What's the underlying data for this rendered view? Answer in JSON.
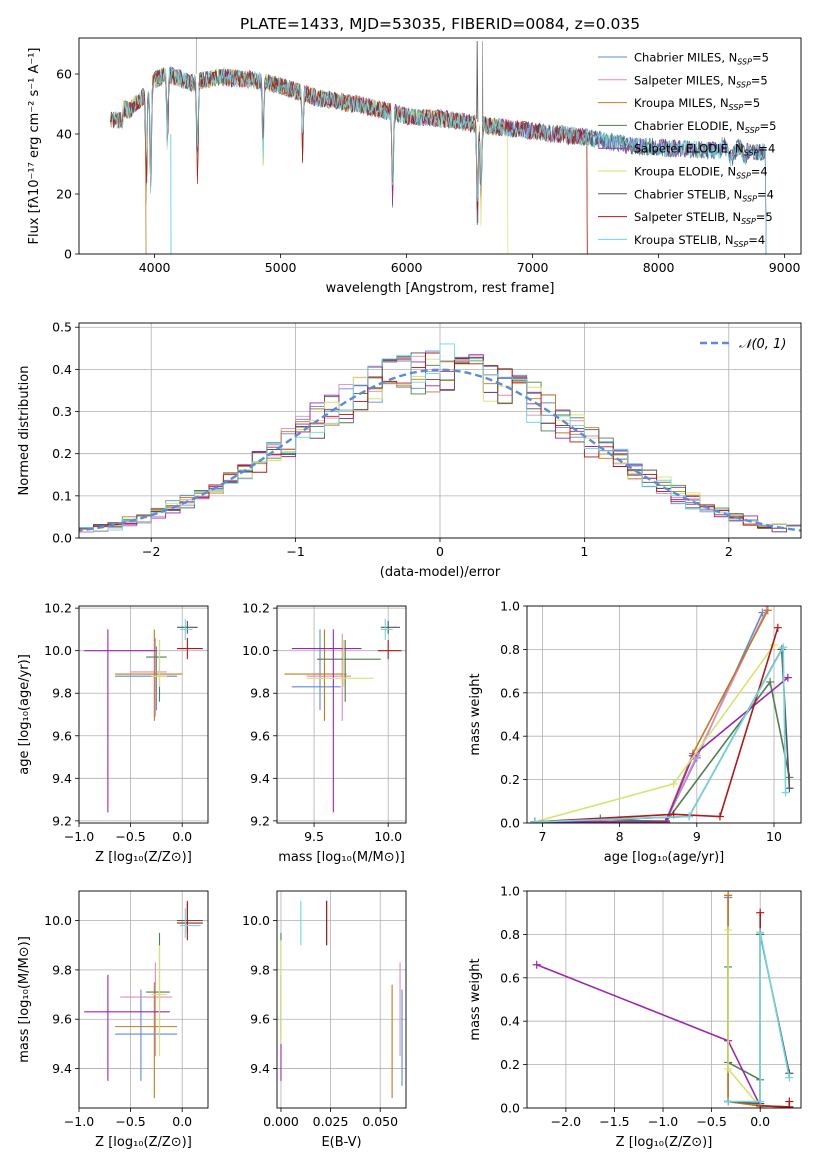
{
  "figure_title": "PLATE=1433, MJD=53035, FIBERID=0084, z=0.035",
  "legend_spectrum": [
    {
      "name": "Chabrier MILES, N",
      "sub": "SSP",
      "tail": "=5",
      "color": "#5b8bd9"
    },
    {
      "name": "Salpeter MILES, N",
      "sub": "SSP",
      "tail": "=5",
      "color": "#e38ac2"
    },
    {
      "name": "Kroupa MILES, N",
      "sub": "SSP",
      "tail": "=5",
      "color": "#c27b1f"
    },
    {
      "name": "Chabrier ELODIE, N",
      "sub": "SSP",
      "tail": "=5",
      "color": "#4f7f4f"
    },
    {
      "name": "Salpeter ELODIE, N",
      "sub": "SSP",
      "tail": "=4",
      "color": "#9b27b0"
    },
    {
      "name": "Kroupa ELODIE, N",
      "sub": "SSP",
      "tail": "=4",
      "color": "#d6e36b"
    },
    {
      "name": "Chabrier STELIB, N",
      "sub": "SSP",
      "tail": "=4",
      "color": "#555555"
    },
    {
      "name": "Salpeter STELIB, N",
      "sub": "SSP",
      "tail": "=5",
      "color": "#b01818"
    },
    {
      "name": "Kroupa STELIB, N",
      "sub": "SSP",
      "tail": "=4",
      "color": "#70d6e0"
    }
  ],
  "chart_data": [
    {
      "id": "spectrum",
      "type": "line",
      "xlabel": "wavelength [Angstrom, rest frame]",
      "ylabel": "Flux [fλ10⁻¹⁷ erg cm⁻² s⁻¹ A⁻¹]",
      "xlim": [
        3400,
        9130
      ],
      "ylim": [
        0,
        72
      ],
      "xticks": [
        4000,
        5000,
        6000,
        7000,
        8000,
        9000
      ],
      "yticks": [
        0,
        20,
        40,
        60
      ],
      "continuum": [
        [
          3650,
          49
        ],
        [
          3800,
          48
        ],
        [
          3900,
          52
        ],
        [
          4000,
          58
        ],
        [
          4100,
          60
        ],
        [
          4300,
          57
        ],
        [
          4500,
          59
        ],
        [
          4800,
          58
        ],
        [
          5000,
          56
        ],
        [
          5300,
          52
        ],
        [
          5600,
          50
        ],
        [
          6000,
          46
        ],
        [
          6300,
          45
        ],
        [
          6600,
          43
        ],
        [
          7000,
          41
        ],
        [
          7400,
          39
        ],
        [
          7800,
          36
        ],
        [
          8200,
          35
        ],
        [
          8600,
          34
        ],
        [
          8850,
          34
        ]
      ],
      "features": [
        [
          3934,
          30
        ],
        [
          3969,
          35
        ],
        [
          4102,
          20
        ],
        [
          4340,
          28
        ],
        [
          4861,
          22
        ],
        [
          5175,
          18
        ],
        [
          5890,
          25
        ],
        [
          6563,
          30
        ],
        [
          6590,
          24
        ]
      ],
      "model_ends": [
        null,
        7430,
        7430,
        8850,
        8850,
        6800,
        8850,
        7430,
        8850
      ],
      "spike": [
        6563,
        71
      ]
    },
    {
      "id": "residuals",
      "type": "step",
      "xlabel": "(data-model)/error",
      "ylabel": "Normed distribution",
      "xlim": [
        -2.5,
        2.5
      ],
      "ylim": [
        0,
        0.51
      ],
      "xticks": [
        -2,
        -1,
        0,
        1,
        2
      ],
      "yticks": [
        0.0,
        0.1,
        0.2,
        0.3,
        0.4,
        0.5
      ],
      "legend": "𝒩(0, 1)",
      "gaussian_color": "#5b8bd9"
    },
    {
      "id": "age-vs-Z",
      "type": "errorbar",
      "xlabel": "Z [log₁₀(Z/Z⊙)]",
      "ylabel": "age  [log₁₀(age/yr)]",
      "xlim": [
        -1.0,
        0.25
      ],
      "ylim": [
        9.19,
        10.21
      ],
      "xticks": [
        -1.0,
        -0.5,
        0.0
      ],
      "yticks": [
        9.2,
        9.4,
        9.6,
        9.8,
        10.0,
        10.2
      ],
      "points": [
        {
          "x": -0.25,
          "y": 9.88,
          "xl": -0.65,
          "xh": -0.05,
          "yl": 9.72,
          "yh": 10.02,
          "color": "#5b8bd9"
        },
        {
          "x": -0.26,
          "y": 9.9,
          "xl": -0.5,
          "xh": -0.15,
          "yl": 9.69,
          "yh": 10.06,
          "color": "#e38ac2"
        },
        {
          "x": -0.27,
          "y": 9.89,
          "xl": -0.65,
          "xh": 0.0,
          "yl": 9.67,
          "yh": 10.1,
          "color": "#c27b1f"
        },
        {
          "x": -0.22,
          "y": 9.97,
          "xl": -0.35,
          "xh": -0.15,
          "yl": 9.76,
          "yh": 10.05,
          "color": "#4f7f4f"
        },
        {
          "x": -0.72,
          "y": 10.0,
          "xl": -0.95,
          "xh": -0.25,
          "yl": 9.24,
          "yh": 10.1,
          "color": "#9b27b0"
        },
        {
          "x": -0.22,
          "y": 9.88,
          "xl": -0.3,
          "xh": -0.15,
          "yl": 9.83,
          "yh": 10.05,
          "color": "#d6e36b"
        },
        {
          "x": 0.05,
          "y": 10.11,
          "xl": -0.05,
          "xh": 0.15,
          "yl": 10.08,
          "yh": 10.14,
          "color": "#555555"
        },
        {
          "x": 0.05,
          "y": 10.01,
          "xl": -0.05,
          "xh": 0.2,
          "yl": 9.96,
          "yh": 10.06,
          "color": "#b01818"
        },
        {
          "x": 0.03,
          "y": 10.1,
          "xl": -0.02,
          "xh": 0.1,
          "yl": 10.05,
          "yh": 10.15,
          "color": "#70d6e0"
        }
      ]
    },
    {
      "id": "age-vs-mass",
      "type": "errorbar",
      "xlabel": "mass [log₁₀(M/M⊙)]",
      "ylabel": "",
      "xlim": [
        9.25,
        10.12
      ],
      "ylim": [
        9.19,
        10.21
      ],
      "xticks": [
        9.5,
        10.0
      ],
      "yticks": [
        9.2,
        9.4,
        9.6,
        9.8,
        10.0,
        10.2
      ],
      "points": [
        {
          "x": 9.54,
          "y": 9.83,
          "xl": 9.35,
          "xh": 9.68,
          "yl": 9.72,
          "yh": 10.1,
          "color": "#5b8bd9"
        },
        {
          "x": 9.69,
          "y": 9.88,
          "xl": 9.45,
          "xh": 9.75,
          "yl": 9.67,
          "yh": 10.08,
          "color": "#e38ac2"
        },
        {
          "x": 9.57,
          "y": 9.89,
          "xl": 9.3,
          "xh": 9.72,
          "yl": 9.67,
          "yh": 10.1,
          "color": "#c27b1f"
        },
        {
          "x": 9.71,
          "y": 9.96,
          "xl": 9.52,
          "xh": 9.95,
          "yl": 9.76,
          "yh": 10.05,
          "color": "#4f7f4f"
        },
        {
          "x": 9.63,
          "y": 10.01,
          "xl": 9.35,
          "xh": 9.82,
          "yl": 9.24,
          "yh": 10.1,
          "color": "#9b27b0"
        },
        {
          "x": 9.7,
          "y": 9.87,
          "xl": 9.45,
          "xh": 9.9,
          "yl": 9.83,
          "yh": 10.05,
          "color": "#d6e36b"
        },
        {
          "x": 10.0,
          "y": 10.11,
          "xl": 9.95,
          "xh": 10.08,
          "yl": 10.08,
          "yh": 10.14,
          "color": "#555555"
        },
        {
          "x": 10.0,
          "y": 10.0,
          "xl": 9.93,
          "xh": 10.09,
          "yl": 9.96,
          "yh": 10.05,
          "color": "#b01818"
        },
        {
          "x": 9.98,
          "y": 10.1,
          "xl": 9.95,
          "xh": 10.03,
          "yl": 10.05,
          "yh": 10.15,
          "color": "#70d6e0"
        }
      ]
    },
    {
      "id": "weight-vs-age",
      "type": "line",
      "xlabel": "age  [log₁₀(age/yr)]",
      "ylabel": "mass weight",
      "xlim": [
        6.8,
        10.35
      ],
      "ylim": [
        0,
        1.0
      ],
      "xticks": [
        7,
        8,
        9,
        10
      ],
      "yticks": [
        0.0,
        0.2,
        0.4,
        0.6,
        0.8,
        1.0
      ],
      "series": [
        {
          "color": "#5b8bd9",
          "x": [
            6.9,
            8.6,
            9.0,
            9.85
          ],
          "y": [
            0.005,
            0.01,
            0.3,
            0.97
          ]
        },
        {
          "color": "#e38ac2",
          "x": [
            6.9,
            8.6,
            9.0,
            9.9
          ],
          "y": [
            0.005,
            0.01,
            0.31,
            0.98
          ]
        },
        {
          "color": "#c27b1f",
          "x": [
            6.9,
            8.6,
            8.95,
            9.92
          ],
          "y": [
            0.005,
            0.01,
            0.32,
            0.98
          ]
        },
        {
          "color": "#4f7f4f",
          "x": [
            6.9,
            7.75,
            8.6,
            9.95,
            10.2
          ],
          "y": [
            0.005,
            0.02,
            0.005,
            0.65,
            0.21
          ]
        },
        {
          "color": "#9b27b0",
          "x": [
            6.9,
            8.6,
            8.95,
            10.18
          ],
          "y": [
            0.005,
            0.005,
            0.31,
            0.67
          ]
        },
        {
          "color": "#d6e36b",
          "x": [
            6.9,
            8.7,
            10.0
          ],
          "y": [
            0.005,
            0.18,
            0.82
          ]
        },
        {
          "color": "#555555",
          "x": [
            6.9,
            8.9,
            10.1,
            10.2
          ],
          "y": [
            0.005,
            0.03,
            0.8,
            0.16
          ]
        },
        {
          "color": "#b01818",
          "x": [
            6.9,
            8.7,
            9.3,
            10.05
          ],
          "y": [
            0.005,
            0.04,
            0.03,
            0.9
          ]
        },
        {
          "color": "#70d6e0",
          "x": [
            6.9,
            8.9,
            10.12,
            10.15
          ],
          "y": [
            0.005,
            0.03,
            0.81,
            0.14
          ]
        }
      ]
    },
    {
      "id": "mass-vs-Z",
      "type": "errorbar",
      "xlabel": "Z [log₁₀(Z/Z⊙)]",
      "ylabel": "mass [log₁₀(M/M⊙)]",
      "xlim": [
        -1.0,
        0.25
      ],
      "ylim": [
        9.24,
        10.12
      ],
      "xticks": [
        -1.0,
        -0.5,
        0.0
      ],
      "yticks": [
        9.4,
        9.6,
        9.8,
        10.0
      ],
      "points": [
        {
          "x": -0.4,
          "y": 9.54,
          "xl": -0.65,
          "xh": -0.05,
          "yl": 9.35,
          "yh": 9.72,
          "color": "#5b8bd9"
        },
        {
          "x": -0.26,
          "y": 9.69,
          "xl": -0.6,
          "xh": -0.1,
          "yl": 9.45,
          "yh": 9.83,
          "color": "#e38ac2"
        },
        {
          "x": -0.27,
          "y": 9.57,
          "xl": -0.65,
          "xh": -0.05,
          "yl": 9.28,
          "yh": 9.75,
          "color": "#c27b1f"
        },
        {
          "x": -0.22,
          "y": 9.71,
          "xl": -0.35,
          "xh": -0.12,
          "yl": 9.52,
          "yh": 9.95,
          "color": "#4f7f4f"
        },
        {
          "x": -0.72,
          "y": 9.63,
          "xl": -0.95,
          "xh": -0.12,
          "yl": 9.35,
          "yh": 9.78,
          "color": "#9b27b0"
        },
        {
          "x": -0.22,
          "y": 9.7,
          "xl": -0.3,
          "xh": -0.15,
          "yl": 9.45,
          "yh": 9.9,
          "color": "#d6e36b"
        },
        {
          "x": 0.05,
          "y": 10.0,
          "xl": -0.05,
          "xh": 0.2,
          "yl": 9.95,
          "yh": 10.07,
          "color": "#555555"
        },
        {
          "x": 0.05,
          "y": 9.99,
          "xl": -0.05,
          "xh": 0.2,
          "yl": 9.92,
          "yh": 10.08,
          "color": "#b01818"
        },
        {
          "x": 0.03,
          "y": 9.98,
          "xl": -0.02,
          "xh": 0.18,
          "yl": 9.93,
          "yh": 10.05,
          "color": "#70d6e0"
        }
      ]
    },
    {
      "id": "mass-vs-ebv",
      "type": "errorbar",
      "xlabel": "E(B-V)",
      "ylabel": "",
      "xlim": [
        -0.002,
        0.063
      ],
      "ylim": [
        9.24,
        10.12
      ],
      "xticks": [
        0.0,
        0.025,
        0.05
      ],
      "yticks": [
        9.4,
        9.6,
        9.8,
        10.0
      ],
      "points": [
        {
          "x": 0.061,
          "y": 9.54,
          "yl": 9.33,
          "yh": 9.72,
          "color": "#5b8bd9"
        },
        {
          "x": 0.06,
          "y": 9.69,
          "yl": 9.45,
          "yh": 9.83,
          "color": "#e38ac2"
        },
        {
          "x": 0.056,
          "y": 9.57,
          "yl": 9.28,
          "yh": 9.74,
          "color": "#c27b1f"
        },
        {
          "x": 0.0,
          "y": 9.71,
          "yl": 9.52,
          "yh": 9.95,
          "color": "#4f7f4f"
        },
        {
          "x": 0.0,
          "y": 9.63,
          "yl": 9.35,
          "yh": 9.78,
          "color": "#9b27b0"
        },
        {
          "x": 0.0,
          "y": 9.7,
          "yl": 9.5,
          "yh": 9.92,
          "color": "#d6e36b"
        },
        {
          "x": 0.023,
          "y": 10.0,
          "yl": 9.9,
          "yh": 10.08,
          "color": "#555555"
        },
        {
          "x": 0.023,
          "y": 9.99,
          "yl": 9.9,
          "yh": 10.08,
          "color": "#b01818"
        },
        {
          "x": 0.01,
          "y": 9.98,
          "yl": 9.9,
          "yh": 10.08,
          "color": "#70d6e0"
        }
      ]
    },
    {
      "id": "weight-vs-Z",
      "type": "line",
      "xlabel": "Z [log₁₀(Z/Z⊙)]",
      "ylabel": "mass weight",
      "xlim": [
        -2.4,
        0.42
      ],
      "ylim": [
        0,
        1.0
      ],
      "xticks": [
        -2.0,
        -1.5,
        -1.0,
        -0.5,
        0.0
      ],
      "xticklabels": [
        "−2.0",
        "−1.5",
        "−1.0",
        "−0.5",
        "0.0"
      ],
      "yticks": [
        0.0,
        0.2,
        0.4,
        0.6,
        0.8,
        1.0
      ],
      "series": [
        {
          "color": "#5b8bd9",
          "x": [
            -0.33,
            -0.33,
            0.0,
            0.3
          ],
          "y": [
            0.97,
            0.03,
            0.01,
            0.005
          ]
        },
        {
          "color": "#e38ac2",
          "x": [
            -0.33,
            -0.33,
            0.0,
            0.3
          ],
          "y": [
            0.98,
            0.03,
            0.01,
            0.005
          ]
        },
        {
          "color": "#c27b1f",
          "x": [
            -0.33,
            -0.33,
            0.0,
            0.3
          ],
          "y": [
            0.98,
            0.03,
            0.01,
            0.005
          ]
        },
        {
          "color": "#4f7f4f",
          "x": [
            -0.33,
            -0.33,
            0.0,
            0.0
          ],
          "y": [
            0.65,
            0.21,
            0.13,
            0.02
          ]
        },
        {
          "color": "#9b27b0",
          "x": [
            -2.3,
            -0.33,
            0.0
          ],
          "y": [
            0.66,
            0.31,
            0.01
          ]
        },
        {
          "color": "#d6e36b",
          "x": [
            -0.33,
            -0.33,
            0.0
          ],
          "y": [
            0.82,
            0.18,
            0.005
          ]
        },
        {
          "color": "#555555",
          "x": [
            -0.33,
            0.0,
            0.0,
            0.3
          ],
          "y": [
            0.03,
            0.02,
            0.8,
            0.16
          ]
        },
        {
          "color": "#b01818",
          "x": [
            0.0,
            0.0,
            0.3,
            0.3
          ],
          "y": [
            0.9,
            0.01,
            0.005,
            0.03
          ]
        },
        {
          "color": "#70d6e0",
          "x": [
            -0.33,
            0.0,
            0.0,
            0.3
          ],
          "y": [
            0.03,
            0.03,
            0.81,
            0.14
          ]
        }
      ]
    }
  ]
}
